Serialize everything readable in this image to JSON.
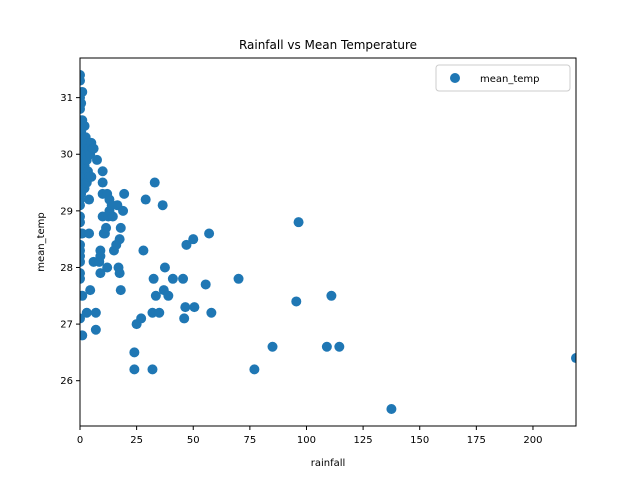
{
  "chart_data": {
    "type": "scatter",
    "title": "Rainfall vs Mean Temperature",
    "xlabel": "rainfall",
    "ylabel": "mean_temp",
    "xlim": [
      0,
      219
    ],
    "ylim": [
      25.2,
      31.7
    ],
    "xticks": [
      0,
      25,
      50,
      75,
      100,
      125,
      150,
      175,
      200
    ],
    "yticks": [
      26,
      27,
      28,
      29,
      30,
      31
    ],
    "grid": false,
    "legend": {
      "position": "top-right",
      "entries": [
        "mean_temp"
      ]
    },
    "marker_color": "#1f77b4",
    "series": [
      {
        "name": "mean_temp",
        "points": [
          [
            0,
            31.4
          ],
          [
            0,
            31.3
          ],
          [
            0,
            31.0
          ],
          [
            0,
            30.8
          ],
          [
            0,
            30.6
          ],
          [
            0,
            30.5
          ],
          [
            0,
            30.3
          ],
          [
            0,
            30.2
          ],
          [
            0,
            30.1
          ],
          [
            0,
            30.0
          ],
          [
            0,
            29.9
          ],
          [
            0,
            29.8
          ],
          [
            0,
            29.7
          ],
          [
            0,
            29.6
          ],
          [
            0,
            29.5
          ],
          [
            0,
            29.4
          ],
          [
            0,
            29.3
          ],
          [
            0,
            29.2
          ],
          [
            0,
            29.1
          ],
          [
            0,
            28.9
          ],
          [
            0,
            28.8
          ],
          [
            0,
            28.6
          ],
          [
            0,
            28.4
          ],
          [
            0,
            28.3
          ],
          [
            0,
            28.2
          ],
          [
            0,
            28.1
          ],
          [
            0,
            27.9
          ],
          [
            0,
            27.8
          ],
          [
            0,
            27.1
          ],
          [
            0.5,
            30.9
          ],
          [
            0.5,
            30.4
          ],
          [
            0.5,
            30.0
          ],
          [
            0.5,
            29.7
          ],
          [
            0.5,
            29.3
          ],
          [
            1,
            31.1
          ],
          [
            1,
            30.6
          ],
          [
            1,
            30.2
          ],
          [
            1,
            29.9
          ],
          [
            1,
            29.5
          ],
          [
            1,
            28.6
          ],
          [
            1,
            27.5
          ],
          [
            1,
            26.8
          ],
          [
            1.5,
            30.3
          ],
          [
            1.5,
            29.9
          ],
          [
            1.5,
            29.6
          ],
          [
            2,
            30.5
          ],
          [
            2,
            30.1
          ],
          [
            2,
            29.8
          ],
          [
            2,
            29.4
          ],
          [
            2.5,
            30.3
          ],
          [
            2.5,
            30.0
          ],
          [
            2.5,
            29.5
          ],
          [
            3,
            30.2
          ],
          [
            3,
            29.9
          ],
          [
            3,
            29.5
          ],
          [
            3,
            27.2
          ],
          [
            3.5,
            30.1
          ],
          [
            3.5,
            29.7
          ],
          [
            4,
            30.1
          ],
          [
            4,
            29.6
          ],
          [
            4,
            29.2
          ],
          [
            4,
            28.6
          ],
          [
            4.5,
            30.0
          ],
          [
            4.5,
            27.6
          ],
          [
            5,
            30.2
          ],
          [
            5,
            29.6
          ],
          [
            5.5,
            30.1
          ],
          [
            6,
            30.1
          ],
          [
            6,
            28.1
          ],
          [
            7,
            27.2
          ],
          [
            7,
            26.9
          ],
          [
            7.5,
            29.9
          ],
          [
            8.5,
            28.1
          ],
          [
            9,
            28.3
          ],
          [
            9,
            28.2
          ],
          [
            9,
            27.9
          ],
          [
            10,
            29.7
          ],
          [
            10,
            29.5
          ],
          [
            10,
            29.3
          ],
          [
            10,
            28.9
          ],
          [
            10.5,
            28.6
          ],
          [
            11,
            28.6
          ],
          [
            11.5,
            28.7
          ],
          [
            12,
            29.3
          ],
          [
            12,
            28.0
          ],
          [
            12.5,
            28.9
          ],
          [
            13,
            29.2
          ],
          [
            13,
            29.0
          ],
          [
            14,
            29.1
          ],
          [
            14.5,
            28.9
          ],
          [
            15,
            28.3
          ],
          [
            16,
            28.4
          ],
          [
            16.5,
            29.1
          ],
          [
            17,
            28.0
          ],
          [
            17.5,
            28.5
          ],
          [
            17.5,
            27.9
          ],
          [
            18,
            28.7
          ],
          [
            18,
            27.6
          ],
          [
            19,
            29.0
          ],
          [
            19.5,
            29.3
          ],
          [
            24,
            26.5
          ],
          [
            24,
            26.2
          ],
          [
            25,
            27.0
          ],
          [
            27,
            27.1
          ],
          [
            28,
            28.3
          ],
          [
            29,
            29.2
          ],
          [
            32,
            27.2
          ],
          [
            32,
            26.2
          ],
          [
            32.5,
            27.8
          ],
          [
            33,
            29.5
          ],
          [
            33.5,
            27.5
          ],
          [
            35,
            27.2
          ],
          [
            36.5,
            29.1
          ],
          [
            37,
            27.6
          ],
          [
            37.5,
            28.0
          ],
          [
            39,
            27.5
          ],
          [
            41,
            27.8
          ],
          [
            45.5,
            27.8
          ],
          [
            46,
            27.1
          ],
          [
            46.5,
            27.3
          ],
          [
            47,
            28.4
          ],
          [
            50,
            28.5
          ],
          [
            50.5,
            27.3
          ],
          [
            55.5,
            27.7
          ],
          [
            57,
            28.6
          ],
          [
            58,
            27.2
          ],
          [
            70,
            27.8
          ],
          [
            77,
            26.2
          ],
          [
            85,
            26.6
          ],
          [
            95.5,
            27.4
          ],
          [
            96.5,
            28.8
          ],
          [
            109,
            26.6
          ],
          [
            111,
            27.5
          ],
          [
            114.5,
            26.6
          ],
          [
            137.5,
            25.5
          ],
          [
            219,
            26.4
          ]
        ]
      }
    ]
  }
}
